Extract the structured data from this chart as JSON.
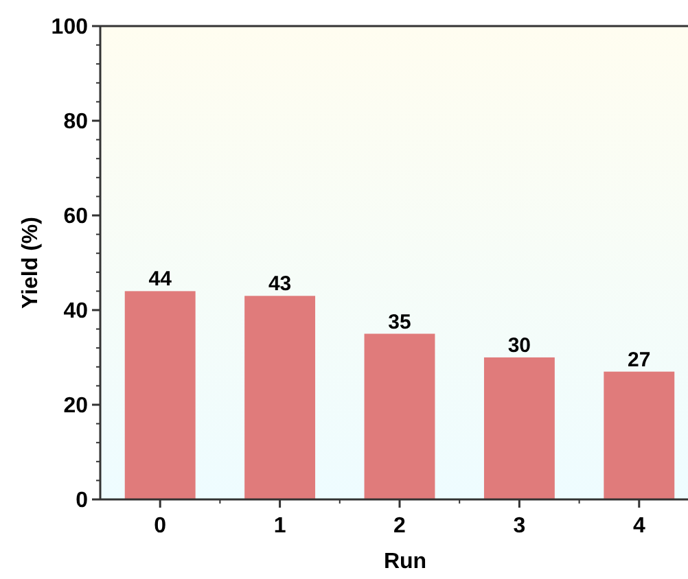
{
  "chart_data": {
    "type": "bar",
    "xlabel": "Run",
    "ylabel": "Yield (%)",
    "categories": [
      "0",
      "1",
      "2",
      "3",
      "4"
    ],
    "values": [
      44,
      43,
      35,
      30,
      27
    ],
    "color": "#e07b7b",
    "ylim": [
      0,
      100
    ],
    "yticks": [
      0,
      20,
      40,
      60,
      80,
      100
    ],
    "data_labels": true,
    "grid": false
  }
}
